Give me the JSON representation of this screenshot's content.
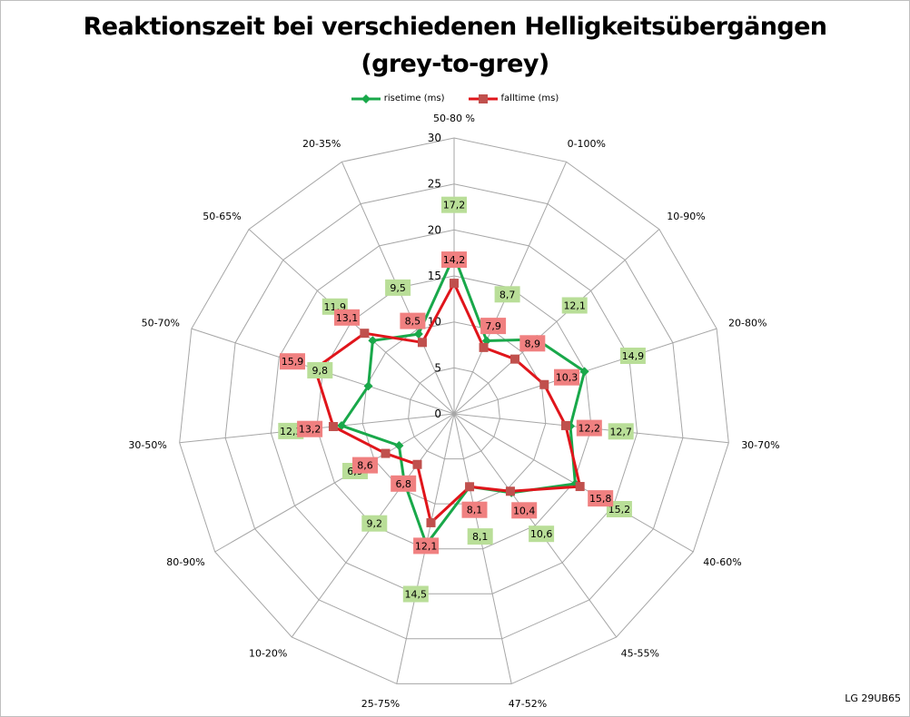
{
  "chart_title_line1": "Reaktionszeit bei verschiedenen Helligkeitsübergängen",
  "chart_title_line2": "(grey-to-grey)",
  "source_label": "LG 29UB65",
  "colors": {
    "risetime": "#19a84a",
    "falltime": "#e0151b",
    "rise_label_bg": "#b9de98",
    "fall_label_bg": "#f08080",
    "grid": "#a6a6a6"
  },
  "chart_data": {
    "type": "radar",
    "categories": [
      "50-80 %",
      "0-100%",
      "10-90%",
      "20-80%",
      "30-70%",
      "40-60%",
      "45-55%",
      "47-52%",
      "25-75%",
      "10-20%",
      "80-90%",
      "30-50%",
      "50-70%",
      "50-65%",
      "20-35%"
    ],
    "series": [
      {
        "name": "risetime (ms)",
        "values": [
          17.2,
          8.7,
          12.1,
          14.9,
          12.7,
          15.2,
          10.6,
          8.1,
          14.5,
          9.2,
          6.9,
          12.3,
          9.8,
          11.9,
          9.5
        ],
        "color": "#19a84a",
        "marker": "diamond"
      },
      {
        "name": "falltime (ms)",
        "values": [
          14.2,
          7.9,
          8.9,
          10.3,
          12.2,
          15.8,
          10.4,
          8.1,
          12.1,
          6.8,
          8.6,
          13.2,
          15.9,
          13.1,
          8.5
        ],
        "color": "#e0151b",
        "marker": "square"
      }
    ],
    "r_ticks": [
      "0",
      "5",
      "10",
      "15",
      "20",
      "25",
      "30"
    ],
    "rlim": [
      0,
      30
    ],
    "grid": true,
    "legend_position": "top"
  }
}
